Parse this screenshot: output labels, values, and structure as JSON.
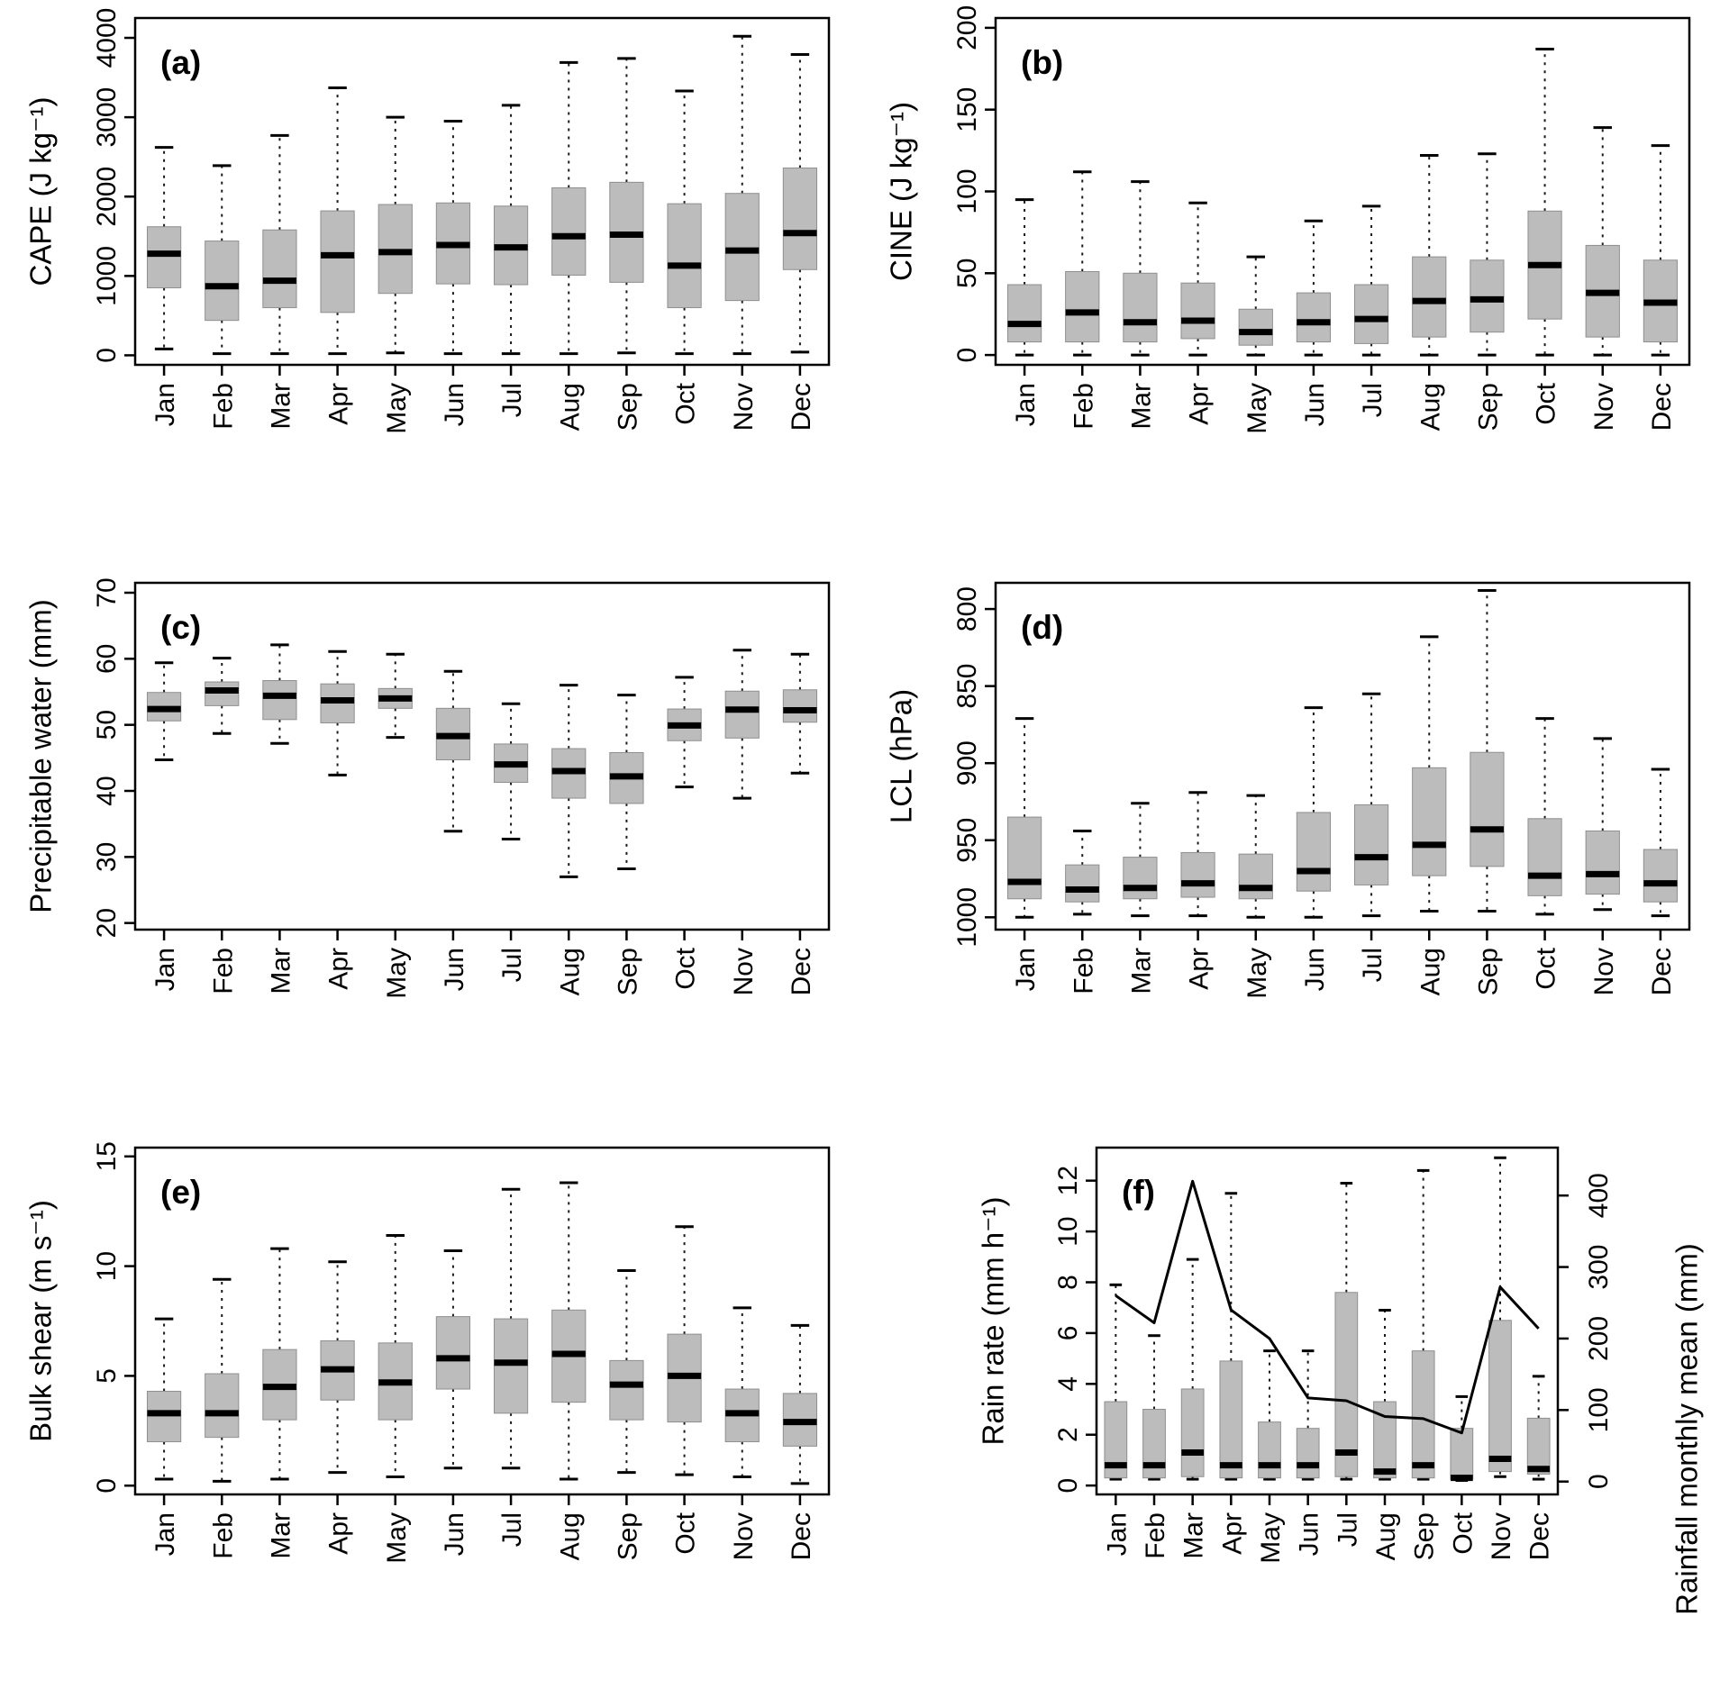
{
  "figure_title": "",
  "months": [
    "Jan",
    "Feb",
    "Mar",
    "Apr",
    "May",
    "Jun",
    "Jul",
    "Aug",
    "Sep",
    "Oct",
    "Nov",
    "Dec"
  ],
  "chart_data": [
    {
      "type": "boxplot",
      "id": "a",
      "letter": "(a)",
      "ylabel": "CAPE (J kg⁻¹)",
      "yticks": [
        0,
        1000,
        2000,
        3000,
        4000
      ],
      "ylim": [
        -120,
        4250
      ],
      "categories": [
        "Jan",
        "Feb",
        "Mar",
        "Apr",
        "May",
        "Jun",
        "Jul",
        "Aug",
        "Sep",
        "Oct",
        "Nov",
        "Dec"
      ],
      "whisker_low": [
        80,
        20,
        20,
        20,
        30,
        20,
        20,
        20,
        30,
        20,
        20,
        40
      ],
      "q1": [
        850,
        440,
        600,
        540,
        780,
        900,
        890,
        1010,
        920,
        600,
        690,
        1080
      ],
      "median": [
        1280,
        870,
        940,
        1260,
        1300,
        1390,
        1360,
        1500,
        1520,
        1130,
        1320,
        1540
      ],
      "q3": [
        1620,
        1440,
        1580,
        1820,
        1900,
        1920,
        1880,
        2110,
        2180,
        1910,
        2040,
        2360
      ],
      "whisker_high": [
        2620,
        2390,
        2770,
        3370,
        3000,
        2950,
        3150,
        3690,
        3740,
        3330,
        4020,
        3790
      ]
    },
    {
      "type": "boxplot",
      "id": "b",
      "letter": "(b)",
      "ylabel": "CINE (J kg⁻¹)",
      "yticks": [
        0,
        50,
        100,
        150,
        200
      ],
      "ylim": [
        -6,
        206
      ],
      "categories": [
        "Jan",
        "Feb",
        "Mar",
        "Apr",
        "May",
        "Jun",
        "Jul",
        "Aug",
        "Sep",
        "Oct",
        "Nov",
        "Dec"
      ],
      "whisker_low": [
        0,
        0,
        0,
        0,
        0,
        0,
        0,
        0,
        0,
        0,
        0,
        0
      ],
      "q1": [
        8,
        8,
        8,
        10,
        6,
        8,
        7,
        11,
        14,
        22,
        11,
        8
      ],
      "median": [
        19,
        26,
        20,
        21,
        14,
        20,
        22,
        33,
        34,
        55,
        38,
        32
      ],
      "q3": [
        43,
        51,
        50,
        44,
        28,
        38,
        43,
        60,
        58,
        88,
        67,
        58
      ],
      "whisker_high": [
        95,
        112,
        106,
        93,
        60,
        82,
        91,
        122,
        123,
        187,
        139,
        128
      ]
    },
    {
      "type": "boxplot",
      "id": "c",
      "letter": "(c)",
      "ylabel": "Precipitable water (mm)",
      "yticks": [
        20,
        30,
        40,
        50,
        60,
        70
      ],
      "ylim": [
        19,
        71.5
      ],
      "categories": [
        "Jan",
        "Feb",
        "Mar",
        "Apr",
        "May",
        "Jun",
        "Jul",
        "Aug",
        "Sep",
        "Oct",
        "Nov",
        "Dec"
      ],
      "whisker_low": [
        44.7,
        48.7,
        47.2,
        42.4,
        48.1,
        33.9,
        32.7,
        27.0,
        28.2,
        40.6,
        38.9,
        42.7
      ],
      "q1": [
        50.6,
        52.9,
        50.8,
        50.3,
        52.5,
        44.7,
        41.3,
        38.9,
        38.1,
        47.6,
        48.0,
        50.4
      ],
      "median": [
        52.4,
        55.2,
        54.4,
        53.7,
        54.0,
        48.3,
        44.0,
        43.0,
        42.2,
        49.9,
        52.3,
        52.2
      ],
      "q3": [
        54.9,
        56.5,
        56.7,
        56.2,
        55.5,
        52.5,
        47.1,
        46.4,
        45.8,
        52.4,
        55.1,
        55.3
      ],
      "whisker_high": [
        59.4,
        60.1,
        62.1,
        61.1,
        60.7,
        58.1,
        53.2,
        56.0,
        54.5,
        57.2,
        61.3,
        60.7
      ]
    },
    {
      "type": "boxplot",
      "id": "d",
      "letter": "(d)",
      "ylabel": "LCL (hPa)",
      "yticks": [
        800,
        850,
        900,
        950,
        1000
      ],
      "ylim": [
        1008,
        783
      ],
      "axis_reversed": true,
      "categories": [
        "Jan",
        "Feb",
        "Mar",
        "Apr",
        "May",
        "Jun",
        "Jul",
        "Aug",
        "Sep",
        "Oct",
        "Nov",
        "Dec"
      ],
      "whisker_low": [
        1000,
        998,
        999,
        999,
        1000,
        1000,
        999,
        996,
        996,
        998,
        995,
        999
      ],
      "q1": [
        988,
        990,
        988,
        987,
        988,
        983,
        979,
        973,
        967,
        986,
        985,
        990
      ],
      "median": [
        977,
        982,
        981,
        978,
        981,
        970,
        961,
        953,
        943,
        973,
        972,
        978
      ],
      "q3": [
        935,
        966,
        961,
        958,
        959,
        932,
        927,
        903,
        893,
        936,
        944,
        956
      ],
      "whisker_high": [
        871,
        944,
        926,
        919,
        921,
        864,
        855,
        818,
        788,
        871,
        884,
        904
      ]
    },
    {
      "type": "boxplot",
      "id": "e",
      "letter": "(e)",
      "ylabel": "Bulk shear (m s⁻¹)",
      "yticks": [
        0,
        5,
        10,
        15
      ],
      "ylim": [
        -0.4,
        15.4
      ],
      "categories": [
        "Jan",
        "Feb",
        "Mar",
        "Apr",
        "May",
        "Jun",
        "Jul",
        "Aug",
        "Sep",
        "Oct",
        "Nov",
        "Dec"
      ],
      "whisker_low": [
        0.3,
        0.2,
        0.3,
        0.6,
        0.4,
        0.8,
        0.8,
        0.3,
        0.6,
        0.5,
        0.4,
        0.1
      ],
      "q1": [
        2.0,
        2.2,
        3.0,
        3.9,
        3.0,
        4.4,
        3.3,
        3.8,
        3.0,
        2.9,
        2.0,
        1.8
      ],
      "median": [
        3.3,
        3.3,
        4.5,
        5.3,
        4.7,
        5.8,
        5.6,
        6.0,
        4.6,
        5.0,
        3.3,
        2.9
      ],
      "q3": [
        4.3,
        5.1,
        6.2,
        6.6,
        6.5,
        7.7,
        7.6,
        8.0,
        5.7,
        6.9,
        4.4,
        4.2
      ],
      "whisker_high": [
        7.6,
        9.4,
        10.8,
        10.2,
        11.4,
        10.7,
        13.5,
        13.8,
        9.8,
        11.8,
        8.1,
        7.3
      ]
    },
    {
      "type": "boxplot+line",
      "id": "f",
      "letter": "(f)",
      "ylabel": "Rain rate (mm h⁻¹)",
      "yticks": [
        0,
        2,
        4,
        6,
        8,
        10,
        12
      ],
      "ylim": [
        -0.35,
        13.3
      ],
      "categories": [
        "Jan",
        "Feb",
        "Mar",
        "Apr",
        "May",
        "Jun",
        "Jul",
        "Aug",
        "Sep",
        "Oct",
        "Nov",
        "Dec"
      ],
      "whisker_low": [
        0.25,
        0.25,
        0.25,
        0.25,
        0.25,
        0.25,
        0.25,
        0.25,
        0.25,
        0.2,
        0.35,
        0.25
      ],
      "q1": [
        0.3,
        0.3,
        0.35,
        0.3,
        0.3,
        0.3,
        0.35,
        0.3,
        0.3,
        0.25,
        0.55,
        0.45
      ],
      "median": [
        0.8,
        0.8,
        1.3,
        0.8,
        0.8,
        0.8,
        1.3,
        0.55,
        0.8,
        0.3,
        1.05,
        0.65
      ],
      "q3": [
        3.3,
        3.0,
        3.8,
        4.9,
        2.5,
        2.25,
        7.6,
        3.3,
        5.3,
        2.25,
        6.5,
        2.65
      ],
      "whisker_high": [
        7.9,
        5.9,
        8.9,
        11.5,
        5.3,
        5.3,
        11.9,
        6.9,
        12.4,
        3.5,
        12.9,
        4.3
      ],
      "y2label": "Rainfall monthly mean (mm)",
      "y2ticks": [
        0,
        100,
        200,
        300,
        400
      ],
      "y2lim": [
        -18,
        467
      ],
      "line_series_name": "Rainfall monthly mean",
      "line_values": [
        260,
        222,
        420,
        240,
        200,
        117,
        113,
        91,
        88,
        68,
        272,
        214
      ]
    }
  ],
  "style_colors": {
    "box_fill": "#bcbcbc",
    "box_edge": "#8f8f8f",
    "median": "#000000",
    "whisker": "#1a1a1a",
    "axis": "#000000",
    "background": "#ffffff"
  }
}
